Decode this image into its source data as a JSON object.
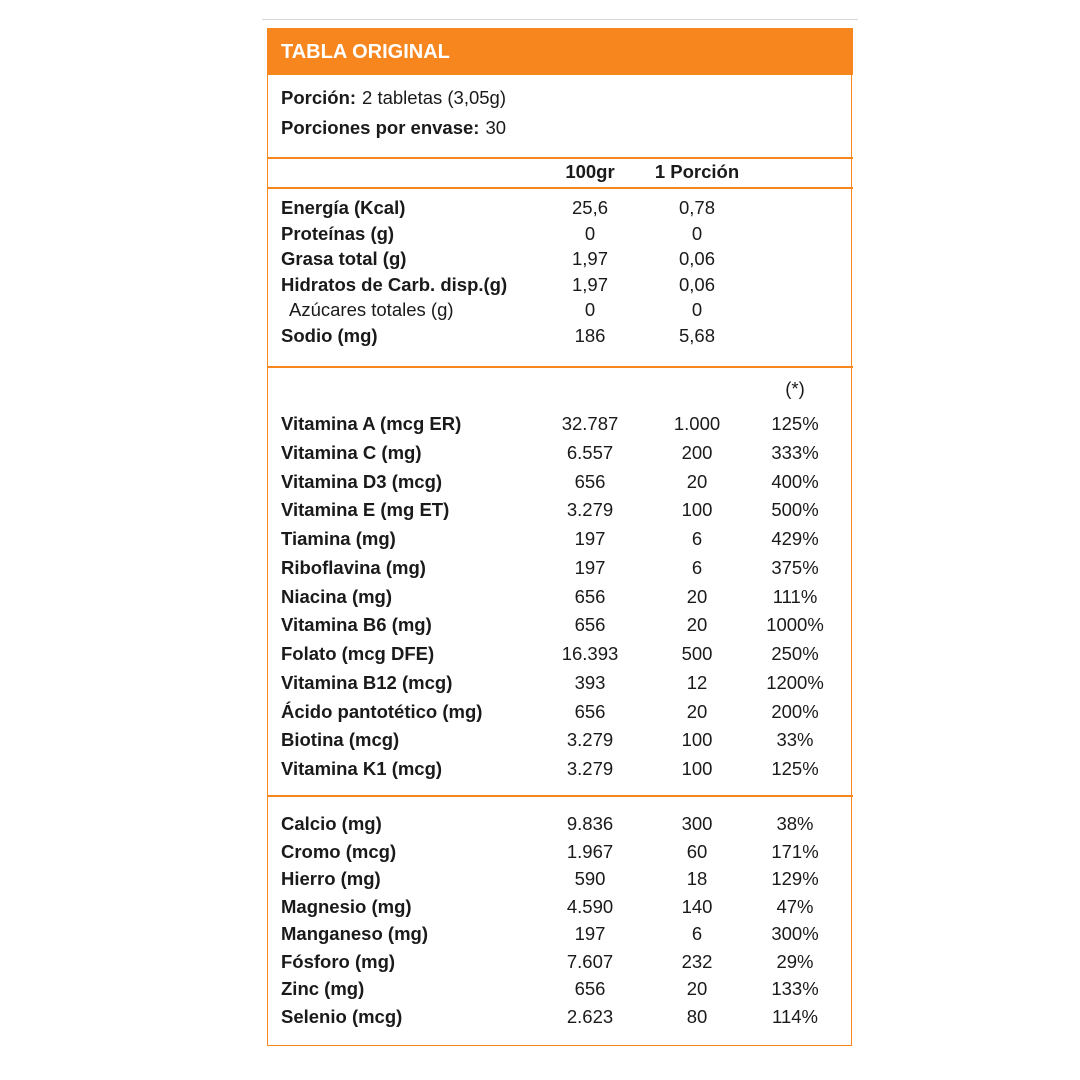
{
  "header": {
    "title": "TABLA ORIGINAL"
  },
  "serving": {
    "rows": [
      {
        "label": "Porción:",
        "value": "2 tabletas (3,05g)"
      },
      {
        "label": "Porciones por envase:",
        "value": "30"
      }
    ]
  },
  "columns": [
    "100gr",
    "1 Porción"
  ],
  "macros": {
    "rows": [
      [
        "Energía (Kcal)",
        "25,6",
        "0,78"
      ],
      [
        "Proteínas (g)",
        "0",
        "0"
      ],
      [
        "Grasa total (g)",
        "1,97",
        "0,06"
      ],
      [
        "Hidratos de Carb. disp.(g)",
        "1,97",
        "0,06"
      ],
      [
        "Azúcares totales (g)",
        "0",
        "0"
      ],
      [
        "Sodio (mg)",
        "186",
        "5,68"
      ]
    ]
  },
  "vitamins": {
    "note": "(*)",
    "rows": [
      [
        "Vitamina A (mcg ER)",
        "32.787",
        "1.000",
        "125%"
      ],
      [
        "Vitamina C (mg)",
        "6.557",
        "200",
        "333%"
      ],
      [
        "Vitamina D3 (mcg)",
        "656",
        "20",
        "400%"
      ],
      [
        "Vitamina E (mg ET)",
        "3.279",
        "100",
        "500%"
      ],
      [
        "Tiamina (mg)",
        "197",
        "6",
        "429%"
      ],
      [
        "Riboflavina (mg)",
        "197",
        "6",
        "375%"
      ],
      [
        "Niacina (mg)",
        "656",
        "20",
        "111%"
      ],
      [
        "Vitamina B6 (mg)",
        "656",
        "20",
        "1000%"
      ],
      [
        "Folato (mcg DFE)",
        "16.393",
        "500",
        "250%"
      ],
      [
        "Vitamina B12 (mcg)",
        "393",
        "12",
        "1200%"
      ],
      [
        "Ácido pantotético (mg)",
        "656",
        "20",
        "200%"
      ],
      [
        "Biotina (mcg)",
        "3.279",
        "100",
        "33%"
      ],
      [
        "Vitamina K1 (mcg)",
        "3.279",
        "100",
        "125%"
      ]
    ]
  },
  "minerals": {
    "rows": [
      [
        "Calcio (mg)",
        "9.836",
        "300",
        "38%"
      ],
      [
        "Cromo (mcg)",
        "1.967",
        "60",
        "171%"
      ],
      [
        "Hierro (mg)",
        "590",
        "18",
        "129%"
      ],
      [
        "Magnesio (mg)",
        "4.590",
        "140",
        "47%"
      ],
      [
        "Manganeso (mg)",
        "197",
        "6",
        "300%"
      ],
      [
        "Fósforo (mg)",
        "7.607",
        "232",
        "29%"
      ],
      [
        "Zinc (mg)",
        "656",
        "20",
        "133%"
      ],
      [
        "Selenio (mcg)",
        "2.623",
        "80",
        "114%"
      ]
    ]
  }
}
